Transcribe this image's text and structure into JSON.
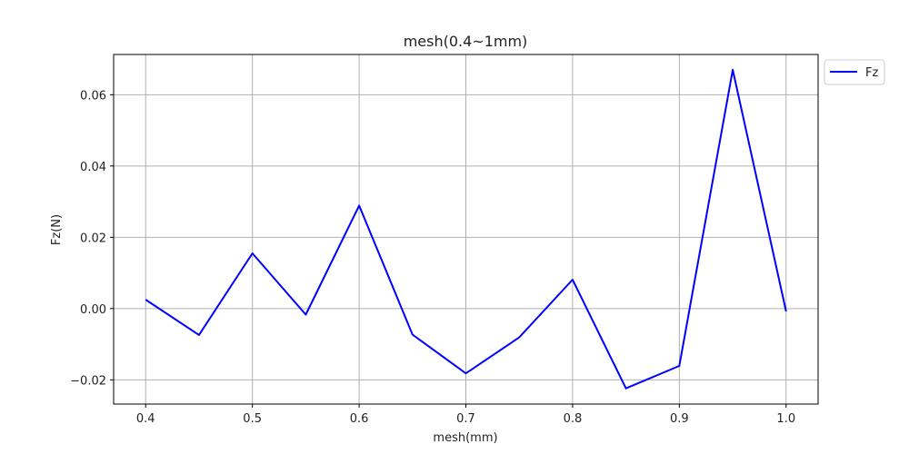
{
  "chart_data": {
    "type": "line",
    "title": "mesh(0.4~1mm)",
    "xlabel": "mesh(mm)",
    "ylabel": "Fz(N)",
    "xlim": [
      0.37,
      1.03
    ],
    "ylim": [
      -0.0268,
      0.0713
    ],
    "xticks": [
      "0.4",
      "0.5",
      "0.6",
      "0.7",
      "0.8",
      "0.9",
      "1.0"
    ],
    "yticks": [
      "−0.02",
      "0.00",
      "0.02",
      "0.04",
      "0.06"
    ],
    "grid": true,
    "legend_position": "upper right, outside plot",
    "series": [
      {
        "name": "Fz",
        "color": "#0000ff",
        "x": [
          0.4,
          0.45,
          0.5,
          0.55,
          0.6,
          0.65,
          0.7,
          0.75,
          0.8,
          0.85,
          0.9,
          0.95,
          1.0
        ],
        "y": [
          0.0025,
          -0.0074,
          0.0155,
          -0.0017,
          0.0289,
          -0.0073,
          -0.0182,
          -0.0081,
          0.0081,
          -0.0224,
          -0.0161,
          0.067,
          -0.0008
        ]
      }
    ]
  }
}
